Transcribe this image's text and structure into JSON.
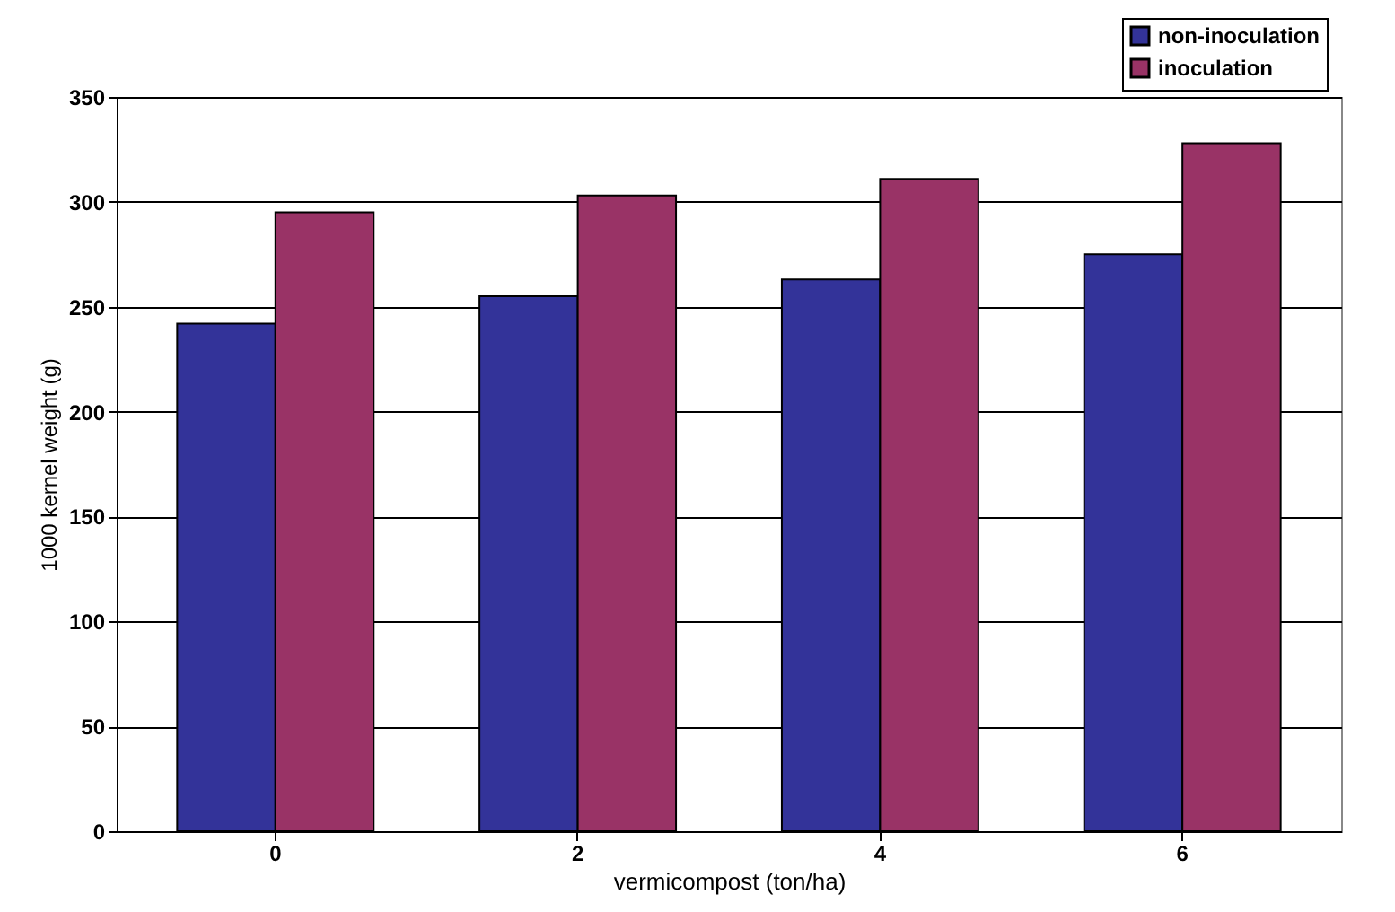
{
  "chart_data": {
    "type": "bar",
    "xlabel": "vermicompost (ton/ha)",
    "ylabel": "1000  kernel weight  (g)",
    "categories": [
      "0",
      "2",
      "4",
      "6"
    ],
    "series": [
      {
        "name": "non-inoculation",
        "color": "#333399",
        "values": [
          242,
          255,
          263,
          275
        ]
      },
      {
        "name": "inoculation",
        "color": "#993366",
        "values": [
          295,
          303,
          311,
          328
        ]
      }
    ],
    "ylim": [
      0,
      350
    ],
    "yticks": [
      0,
      50,
      100,
      150,
      200,
      250,
      300,
      350
    ],
    "grid": "y",
    "legend": "top right"
  }
}
